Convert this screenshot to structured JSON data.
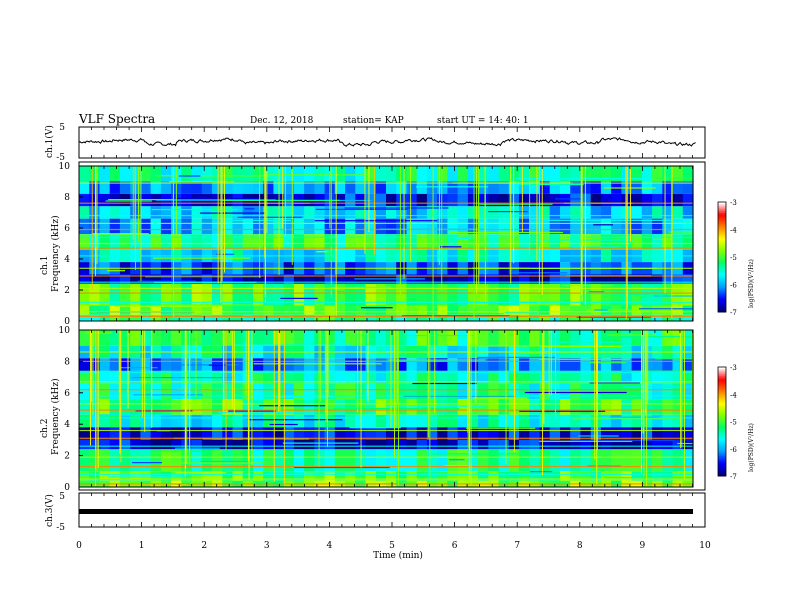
{
  "header": {
    "title": "VLF Spectra",
    "date": "Dec. 12, 2018",
    "station": "station= KAP",
    "start": "start  UT =   14: 40: 1"
  },
  "colorbar": {
    "label": "log(PSD)(V²/Hz)",
    "ticks": [
      "-3",
      "-4",
      "-5",
      "-6",
      "-7"
    ],
    "stops": [
      "#000080",
      "#0000ff",
      "#00a0ff",
      "#00ffff",
      "#00ff66",
      "#80ff00",
      "#ffff00",
      "#ff8000",
      "#ff0000",
      "#ffffff"
    ]
  },
  "chart_data": [
    {
      "type": "line",
      "name": "ch1-waveform",
      "ylabel": "ch.1(V)",
      "ylim": [
        -5,
        5
      ],
      "yticks": [
        "5",
        "-5"
      ],
      "xlim": [
        0,
        10
      ],
      "description_samples": [
        0.5,
        1.2,
        -0.8,
        0.9,
        1.5,
        -0.3,
        0.7,
        1.1,
        -1.0,
        0.4,
        1.3,
        0.2,
        -0.6,
        1.0,
        0.8,
        -0.2,
        1.4,
        0.3,
        -0.9,
        0.6
      ]
    },
    {
      "type": "heatmap",
      "name": "ch1-spectrogram",
      "ylabel": "ch.1\nFrequency (kHz)",
      "ylim": [
        0,
        10
      ],
      "yticks": [
        "0",
        "2",
        "4",
        "6",
        "8",
        "10"
      ],
      "xlim": [
        0,
        10
      ],
      "zlim": [
        -7,
        -3
      ],
      "bands": [
        {
          "f": [
            9.0,
            10.0
          ],
          "level": -5.4
        },
        {
          "f": [
            8.2,
            9.0
          ],
          "level": -6.1
        },
        {
          "f": [
            7.4,
            8.2
          ],
          "level": -6.6
        },
        {
          "f": [
            6.6,
            7.4
          ],
          "level": -5.8
        },
        {
          "f": [
            5.6,
            6.6
          ],
          "level": -6.0
        },
        {
          "f": [
            4.6,
            5.6
          ],
          "level": -5.2
        },
        {
          "f": [
            3.8,
            4.6
          ],
          "level": -5.7
        },
        {
          "f": [
            3.0,
            3.8
          ],
          "level": -6.4
        },
        {
          "f": [
            2.4,
            3.0
          ],
          "level": -6.7
        },
        {
          "f": [
            1.0,
            2.4
          ],
          "level": -5.0
        },
        {
          "f": [
            0.4,
            1.0
          ],
          "level": -4.9
        },
        {
          "f": [
            0.0,
            0.4
          ],
          "level": -5.3
        }
      ],
      "lines_khz": [
        0.3,
        0.6,
        1.2,
        1.8,
        2.1,
        2.5,
        2.9,
        3.4,
        4.2,
        4.7,
        5.0,
        5.4,
        5.9,
        6.3,
        6.8,
        7.6,
        8.9
      ],
      "events_min": [
        0.3,
        0.9,
        1.5,
        2.3,
        2.9,
        3.3,
        4.1,
        4.6,
        5.2,
        5.7,
        6.4,
        7.0,
        7.3,
        8.1,
        8.8,
        9.4
      ]
    },
    {
      "type": "heatmap",
      "name": "ch2-spectrogram",
      "ylabel": "ch.2\nFrequency (kHz)",
      "ylim": [
        0,
        10
      ],
      "yticks": [
        "0",
        "2",
        "4",
        "6",
        "8",
        "10"
      ],
      "xlim": [
        0,
        10
      ],
      "zlim": [
        -7,
        -3
      ],
      "bands": [
        {
          "f": [
            9.0,
            10.0
          ],
          "level": -5.2
        },
        {
          "f": [
            8.2,
            9.0
          ],
          "level": -5.6
        },
        {
          "f": [
            7.4,
            8.2
          ],
          "level": -6.2
        },
        {
          "f": [
            6.6,
            7.4
          ],
          "level": -5.5
        },
        {
          "f": [
            5.6,
            6.6
          ],
          "level": -5.4
        },
        {
          "f": [
            4.6,
            5.6
          ],
          "level": -5.1
        },
        {
          "f": [
            3.8,
            4.6
          ],
          "level": -5.6
        },
        {
          "f": [
            3.0,
            3.8
          ],
          "level": -6.6
        },
        {
          "f": [
            2.4,
            3.0
          ],
          "level": -6.7
        },
        {
          "f": [
            1.0,
            2.4
          ],
          "level": -5.3
        },
        {
          "f": [
            0.4,
            1.0
          ],
          "level": -5.0
        },
        {
          "f": [
            0.0,
            0.4
          ],
          "level": -4.8
        }
      ],
      "lines_khz": [
        0.2,
        0.5,
        0.8,
        1.3,
        1.9,
        2.6,
        3.1,
        3.6,
        4.4,
        4.9,
        5.3,
        5.8,
        6.2,
        6.7,
        7.3,
        8.0,
        8.6
      ],
      "events_min": [
        0.2,
        0.7,
        1.1,
        1.8,
        2.4,
        2.7,
        3.2,
        3.9,
        4.5,
        5.0,
        5.6,
        6.3,
        6.9,
        7.5,
        8.2,
        9.0,
        9.7
      ]
    },
    {
      "type": "line",
      "name": "ch3-waveform",
      "ylabel": "ch.3(V)",
      "ylim": [
        -5,
        5
      ],
      "yticks": [
        "5",
        "-5"
      ],
      "xlim": [
        0,
        10
      ],
      "constant_value": -2.0
    }
  ],
  "xaxis": {
    "label": "Time (min)",
    "ticks": [
      "0",
      "1",
      "2",
      "3",
      "4",
      "5",
      "6",
      "7",
      "8",
      "9",
      "10"
    ]
  }
}
